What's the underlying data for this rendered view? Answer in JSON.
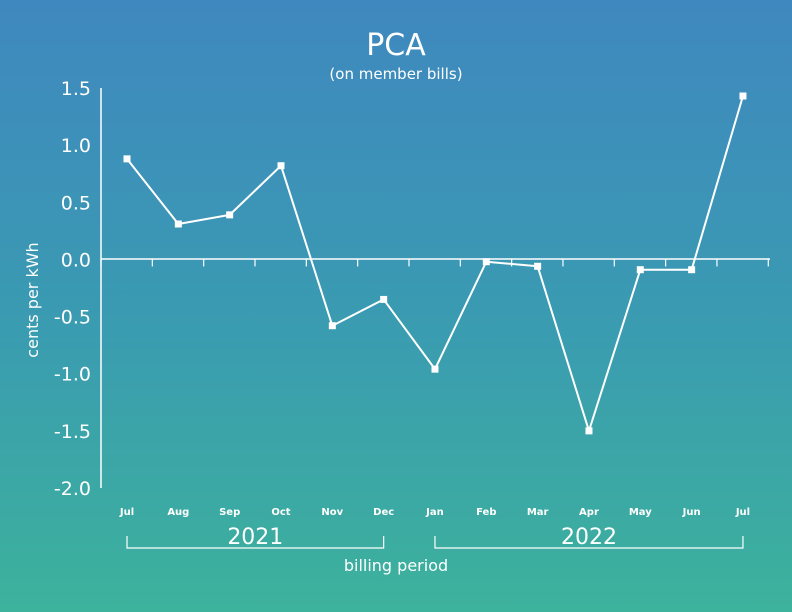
{
  "chart_data": {
    "type": "line",
    "title": "PCA",
    "subtitle": "(on member bills)",
    "xlabel": "billing period",
    "ylabel": "cents per kWh",
    "categories": [
      "Jul",
      "Aug",
      "Sep",
      "Oct",
      "Nov",
      "Dec",
      "Jan",
      "Feb",
      "Mar",
      "Apr",
      "May",
      "Jun",
      "Jul"
    ],
    "values": [
      0.88,
      0.31,
      0.39,
      0.82,
      -0.58,
      -0.35,
      -0.96,
      -0.02,
      -0.06,
      -1.5,
      -0.09,
      -0.09,
      1.43
    ],
    "year_groups": [
      {
        "label": "2021",
        "from": 0,
        "to": 5
      },
      {
        "label": "2022",
        "from": 6,
        "to": 12
      }
    ],
    "yticks": [
      "1.5",
      "1.0",
      "0.5",
      "0.0",
      "-0.5",
      "-1.0",
      "-1.5",
      "-2.0"
    ],
    "ylim": [
      -2.0,
      1.5
    ],
    "grid": false,
    "legend": "none"
  },
  "colors": {
    "background_top": "#3f88bf",
    "background_bottom": "#3db29c",
    "line": "#ffffff"
  }
}
